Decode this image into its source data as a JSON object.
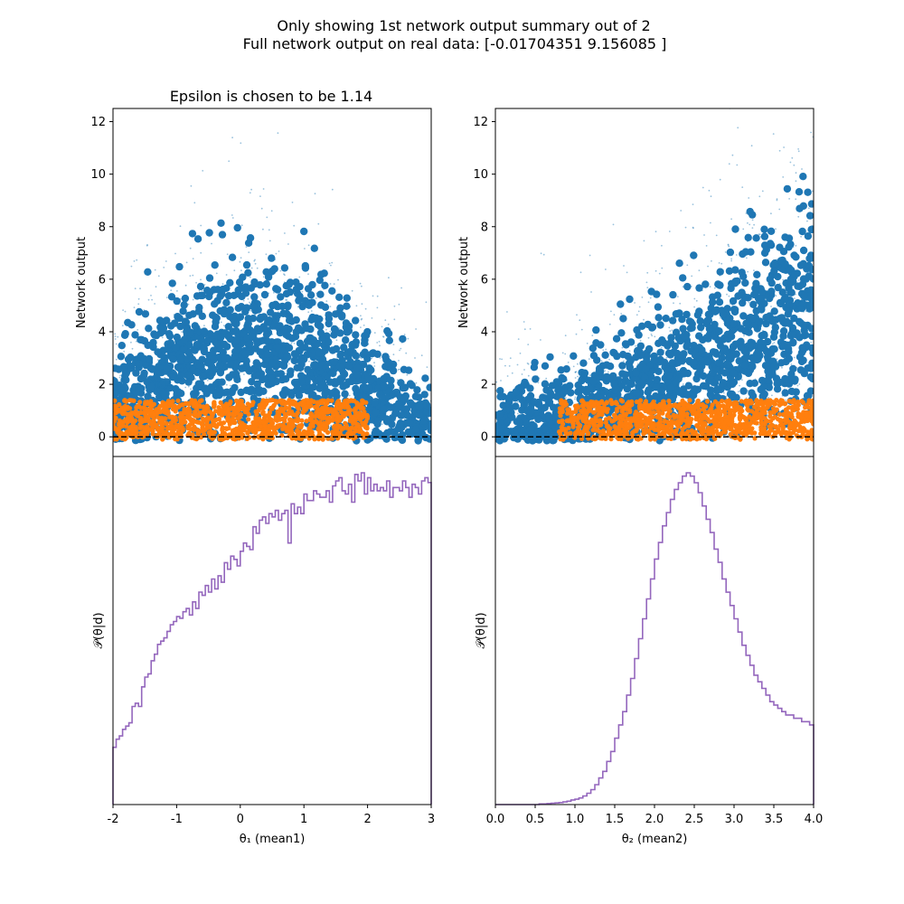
{
  "suptitle_line1": "Only showing 1st network output summary out of 2",
  "suptitle_line2": "Full network output on real data: [-0.01704351  9.156085  ]",
  "colors": {
    "accepted": "#ff7f0e",
    "rejected": "#1f77b4",
    "posterior": "#9467bd",
    "threshold": "#000000"
  },
  "chart_data": [
    {
      "type": "scatter",
      "title": "Epsilon is chosen to be 1.14",
      "ylabel": "Network output",
      "xlim": [
        -2,
        3
      ],
      "ylim": [
        -0.75,
        12.5
      ],
      "yticks": [
        0,
        2,
        4,
        6,
        8,
        10,
        12
      ],
      "threshold_y": 0,
      "epsilon": 1.14,
      "series": [
        {
          "role": "rejected",
          "trend_x": [
            -2,
            -1,
            0,
            1,
            2,
            3
          ],
          "trend_center": [
            1.0,
            2.5,
            3.4,
            3.0,
            1.6,
            0.1
          ]
        },
        {
          "role": "accepted",
          "x_range": [
            -2,
            2
          ],
          "y_range": [
            -0.1,
            1.4
          ]
        }
      ]
    },
    {
      "type": "scatter",
      "title": "",
      "ylabel": "Network output",
      "xlim": [
        0,
        4
      ],
      "ylim": [
        -0.75,
        12.5
      ],
      "yticks": [
        0,
        2,
        4,
        6,
        8,
        10,
        12
      ],
      "threshold_y": 0,
      "epsilon": 1.14,
      "series": [
        {
          "role": "rejected",
          "trend_x": [
            0,
            1,
            2,
            3,
            4
          ],
          "trend_center": [
            0.0,
            0.6,
            2.0,
            3.5,
            5.0
          ]
        },
        {
          "role": "accepted",
          "x_range": [
            0.8,
            4
          ],
          "y_range": [
            -0.1,
            1.4
          ]
        }
      ]
    },
    {
      "type": "histogram",
      "xlabel": "θ₁ (mean1)",
      "ylabel": "𝒫(θ|d)",
      "xlim": [
        -2,
        3
      ],
      "xticks": [
        -2,
        -1,
        0,
        1,
        2,
        3
      ],
      "bin_edges_range": [
        -2,
        3
      ],
      "heights": [
        0.35,
        0.4,
        0.42,
        0.46,
        0.48,
        0.5,
        0.6,
        0.62,
        0.6,
        0.72,
        0.78,
        0.8,
        0.88,
        0.92,
        0.98,
        1.0,
        1.02,
        1.06,
        1.1,
        1.12,
        1.15,
        1.14,
        1.18,
        1.2,
        1.16,
        1.24,
        1.2,
        1.3,
        1.28,
        1.34,
        1.3,
        1.38,
        1.32,
        1.4,
        1.36,
        1.48,
        1.44,
        1.52,
        1.5,
        1.46,
        1.55,
        1.6,
        1.58,
        1.56,
        1.7,
        1.66,
        1.74,
        1.76,
        1.72,
        1.78,
        1.76,
        1.8,
        1.74,
        1.78,
        1.8,
        1.6,
        1.84,
        1.78,
        1.82,
        1.78,
        1.9,
        1.86,
        1.86,
        1.92,
        1.9,
        1.88,
        1.88,
        1.92,
        1.85,
        1.95,
        1.98,
        2.0,
        1.92,
        1.9,
        1.96,
        1.85,
        2.02,
        1.98,
        2.03,
        1.9,
        2.0,
        1.92,
        1.96,
        1.92,
        1.94,
        1.92,
        1.98,
        1.88,
        1.94,
        1.94,
        1.92,
        1.98,
        1.94,
        1.88,
        1.96,
        1.94,
        1.9,
        1.98,
        2.0,
        1.97
      ]
    },
    {
      "type": "histogram",
      "xlabel": "θ₂ (mean2)",
      "ylabel": "𝒫(θ|d)",
      "xlim": [
        0,
        4
      ],
      "xticks": [
        0.0,
        0.5,
        1.0,
        1.5,
        2.0,
        2.5,
        3.0,
        3.5,
        4.0
      ],
      "bin_edges_range": [
        0,
        4
      ],
      "heights": [
        0,
        0,
        0,
        0,
        0,
        0,
        0,
        0,
        0,
        0,
        0,
        0.002,
        0.002,
        0.003,
        0.004,
        0.005,
        0.006,
        0.008,
        0.01,
        0.014,
        0.016,
        0.02,
        0.026,
        0.034,
        0.045,
        0.06,
        0.08,
        0.1,
        0.13,
        0.16,
        0.2,
        0.24,
        0.28,
        0.33,
        0.38,
        0.44,
        0.5,
        0.56,
        0.62,
        0.68,
        0.74,
        0.79,
        0.84,
        0.88,
        0.92,
        0.95,
        0.97,
        0.99,
        1.0,
        0.99,
        0.97,
        0.94,
        0.9,
        0.86,
        0.82,
        0.77,
        0.73,
        0.68,
        0.64,
        0.6,
        0.56,
        0.52,
        0.48,
        0.45,
        0.42,
        0.39,
        0.37,
        0.35,
        0.33,
        0.31,
        0.3,
        0.29,
        0.28,
        0.27,
        0.27,
        0.26,
        0.26,
        0.25,
        0.25,
        0.24
      ]
    }
  ]
}
